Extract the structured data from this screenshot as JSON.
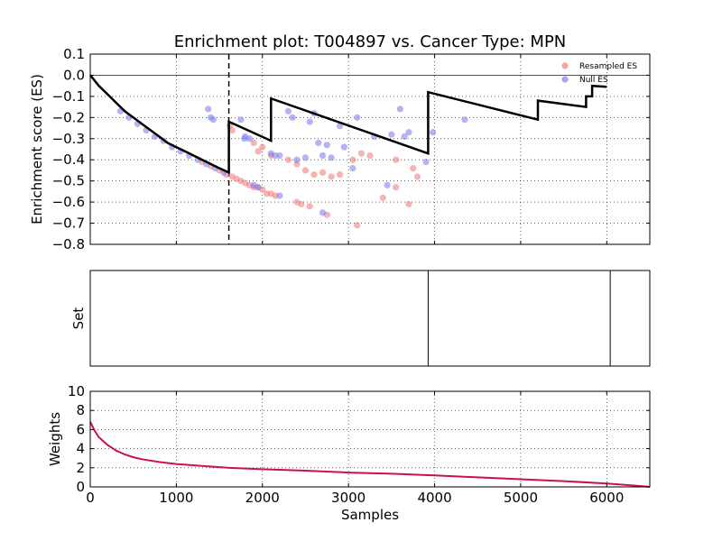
{
  "chart_data": [
    {
      "type": "line+scatter",
      "title": "Enrichment plot: T004897 vs. Cancer Type: MPN",
      "ylabel": "Enrichment score (ES)",
      "xlim": [
        0,
        6500
      ],
      "ylim": [
        -0.8,
        0.1
      ],
      "yticks": [
        0.1,
        0.0,
        -0.1,
        -0.2,
        -0.3,
        -0.4,
        -0.5,
        -0.6,
        -0.7,
        -0.8
      ],
      "ytick_labels": [
        "0.1",
        "0.0",
        "−0.1",
        "−0.2",
        "−0.3",
        "−0.4",
        "−0.5",
        "−0.6",
        "−0.7",
        "−0.8"
      ],
      "grid": true,
      "legend": {
        "placement": "top-right",
        "entries": [
          {
            "name": "Resampled ES",
            "color": "#f08080"
          },
          {
            "name": "Null ES",
            "color": "#8080f0"
          }
        ]
      },
      "zero_line": 0.0,
      "dashed_vline_x": 1610,
      "es_curve": [
        [
          0,
          0.0
        ],
        [
          100,
          -0.05
        ],
        [
          200,
          -0.09
        ],
        [
          300,
          -0.13
        ],
        [
          400,
          -0.17
        ],
        [
          500,
          -0.2
        ],
        [
          600,
          -0.23
        ],
        [
          700,
          -0.26
        ],
        [
          800,
          -0.29
        ],
        [
          900,
          -0.32
        ],
        [
          1000,
          -0.34
        ],
        [
          1100,
          -0.36
        ],
        [
          1200,
          -0.38
        ],
        [
          1300,
          -0.4
        ],
        [
          1400,
          -0.42
        ],
        [
          1500,
          -0.44
        ],
        [
          1610,
          -0.46
        ],
        [
          1610,
          -0.22
        ],
        [
          2100,
          -0.31
        ],
        [
          2100,
          -0.11
        ],
        [
          3925,
          -0.37
        ],
        [
          3925,
          -0.08
        ],
        [
          5200,
          -0.21
        ],
        [
          5200,
          -0.12
        ],
        [
          5760,
          -0.15
        ],
        [
          5760,
          -0.1
        ],
        [
          5830,
          -0.1
        ],
        [
          5830,
          -0.05
        ],
        [
          6000,
          -0.055
        ]
      ],
      "series": [
        {
          "name": "Resampled ES",
          "color": "#f08080",
          "points": [
            [
              1300,
              -0.41
            ],
            [
              1400,
              -0.43
            ],
            [
              1500,
              -0.45
            ],
            [
              1580,
              -0.47
            ],
            [
              1650,
              -0.48
            ],
            [
              1700,
              -0.49
            ],
            [
              1750,
              -0.5
            ],
            [
              1800,
              -0.51
            ],
            [
              1850,
              -0.52
            ],
            [
              1900,
              -0.53
            ],
            [
              1950,
              -0.53
            ],
            [
              2000,
              -0.54
            ],
            [
              2050,
              -0.56
            ],
            [
              2100,
              -0.56
            ],
            [
              2150,
              -0.57
            ],
            [
              1900,
              -0.32
            ],
            [
              1950,
              -0.36
            ],
            [
              2000,
              -0.34
            ],
            [
              2100,
              -0.38
            ],
            [
              2300,
              -0.4
            ],
            [
              2400,
              -0.42
            ],
            [
              2500,
              -0.45
            ],
            [
              2600,
              -0.47
            ],
            [
              2700,
              -0.46
            ],
            [
              2800,
              -0.48
            ],
            [
              2900,
              -0.47
            ],
            [
              3050,
              -0.4
            ],
            [
              3150,
              -0.37
            ],
            [
              3250,
              -0.38
            ],
            [
              3400,
              -0.58
            ],
            [
              3550,
              -0.53
            ],
            [
              3550,
              -0.4
            ],
            [
              3700,
              -0.61
            ],
            [
              3750,
              -0.44
            ],
            [
              3800,
              -0.48
            ],
            [
              2400,
              -0.6
            ],
            [
              2450,
              -0.61
            ],
            [
              2550,
              -0.62
            ],
            [
              2750,
              -0.66
            ],
            [
              3100,
              -0.71
            ],
            [
              1620,
              -0.24
            ],
            [
              1650,
              -0.26
            ]
          ]
        },
        {
          "name": "Null ES",
          "color": "#8080f0",
          "points": [
            [
              350,
              -0.17
            ],
            [
              450,
              -0.2
            ],
            [
              550,
              -0.23
            ],
            [
              650,
              -0.26
            ],
            [
              750,
              -0.29
            ],
            [
              850,
              -0.31
            ],
            [
              950,
              -0.34
            ],
            [
              1050,
              -0.36
            ],
            [
              1150,
              -0.38
            ],
            [
              1250,
              -0.4
            ],
            [
              1350,
              -0.42
            ],
            [
              1450,
              -0.44
            ],
            [
              1550,
              -0.46
            ],
            [
              1370,
              -0.16
            ],
            [
              1400,
              -0.2
            ],
            [
              1430,
              -0.21
            ],
            [
              1750,
              -0.21
            ],
            [
              1790,
              -0.3
            ],
            [
              1800,
              -0.29
            ],
            [
              1850,
              -0.3
            ],
            [
              1900,
              -0.52
            ],
            [
              1950,
              -0.53
            ],
            [
              2100,
              -0.37
            ],
            [
              2150,
              -0.38
            ],
            [
              2200,
              -0.38
            ],
            [
              2300,
              -0.17
            ],
            [
              2350,
              -0.2
            ],
            [
              2400,
              -0.4
            ],
            [
              2500,
              -0.39
            ],
            [
              2550,
              -0.22
            ],
            [
              2600,
              -0.18
            ],
            [
              2650,
              -0.32
            ],
            [
              2700,
              -0.38
            ],
            [
              2750,
              -0.33
            ],
            [
              2800,
              -0.39
            ],
            [
              2900,
              -0.24
            ],
            [
              2950,
              -0.34
            ],
            [
              3100,
              -0.2
            ],
            [
              3050,
              -0.44
            ],
            [
              3300,
              -0.29
            ],
            [
              3450,
              -0.52
            ],
            [
              3500,
              -0.28
            ],
            [
              3600,
              -0.16
            ],
            [
              3650,
              -0.29
            ],
            [
              3700,
              -0.27
            ],
            [
              3900,
              -0.41
            ],
            [
              3980,
              -0.27
            ],
            [
              4350,
              -0.21
            ],
            [
              2200,
              -0.57
            ],
            [
              2700,
              -0.65
            ]
          ]
        }
      ]
    },
    {
      "type": "event-lines",
      "ylabel": "Set",
      "xlim": [
        0,
        6500
      ],
      "events": [
        3925,
        6040
      ]
    },
    {
      "type": "line",
      "ylabel": "Weights",
      "xlabel": "Samples",
      "xlim": [
        0,
        6500
      ],
      "ylim": [
        0,
        10
      ],
      "yticks": [
        0,
        2,
        4,
        6,
        8,
        10
      ],
      "xticks": [
        0,
        1000,
        2000,
        3000,
        4000,
        5000,
        6000
      ],
      "grid": true,
      "series": [
        {
          "name": "",
          "color": "#cc1144",
          "points": [
            [
              0,
              6.8
            ],
            [
              50,
              5.9
            ],
            [
              100,
              5.2
            ],
            [
              200,
              4.4
            ],
            [
              300,
              3.8
            ],
            [
              400,
              3.4
            ],
            [
              500,
              3.1
            ],
            [
              600,
              2.9
            ],
            [
              800,
              2.6
            ],
            [
              1000,
              2.4
            ],
            [
              1300,
              2.2
            ],
            [
              1600,
              2.0
            ],
            [
              2000,
              1.85
            ],
            [
              2500,
              1.7
            ],
            [
              3000,
              1.5
            ],
            [
              3500,
              1.38
            ],
            [
              4000,
              1.2
            ],
            [
              4500,
              1.0
            ],
            [
              5000,
              0.8
            ],
            [
              5500,
              0.6
            ],
            [
              6000,
              0.35
            ],
            [
              6300,
              0.15
            ],
            [
              6500,
              0.0
            ]
          ]
        }
      ]
    }
  ]
}
